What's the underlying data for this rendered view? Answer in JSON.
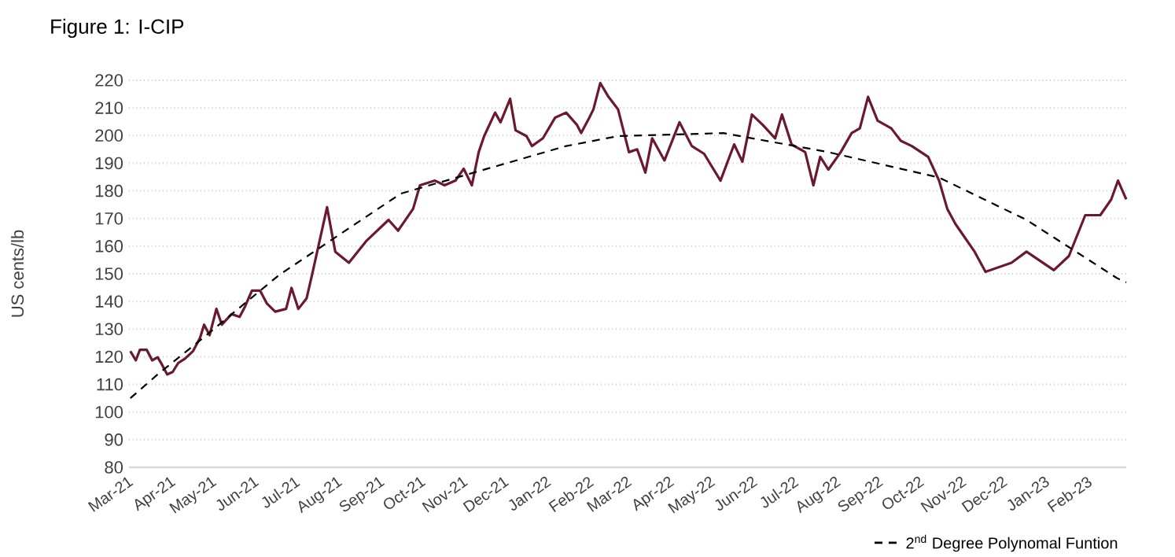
{
  "chart_data": {
    "type": "line",
    "title": "Figure 1: I-CIP",
    "ylabel": "US cents/lb",
    "xlim": [
      "2021-03-01",
      "2023-03-01"
    ],
    "ylim": [
      80,
      220
    ],
    "xticks": [
      {
        "value": "2021-03-01",
        "label": "Mar-21"
      },
      {
        "value": "2021-04-01",
        "label": "Apr-21"
      },
      {
        "value": "2021-05-01",
        "label": "May-21"
      },
      {
        "value": "2021-06-01",
        "label": "Jun-21"
      },
      {
        "value": "2021-07-01",
        "label": "Jul-21"
      },
      {
        "value": "2021-08-01",
        "label": "Aug-21"
      },
      {
        "value": "2021-09-01",
        "label": "Sep-21"
      },
      {
        "value": "2021-10-01",
        "label": "Oct-21"
      },
      {
        "value": "2021-11-01",
        "label": "Nov-21"
      },
      {
        "value": "2021-12-01",
        "label": "Dec-21"
      },
      {
        "value": "2022-01-01",
        "label": "Jan-22"
      },
      {
        "value": "2022-02-01",
        "label": "Feb-22"
      },
      {
        "value": "2022-03-01",
        "label": "Mar-22"
      },
      {
        "value": "2022-04-01",
        "label": "Apr-22"
      },
      {
        "value": "2022-05-01",
        "label": "May-22"
      },
      {
        "value": "2022-06-01",
        "label": "Jun-22"
      },
      {
        "value": "2022-07-01",
        "label": "Jul-22"
      },
      {
        "value": "2022-08-01",
        "label": "Aug-22"
      },
      {
        "value": "2022-09-01",
        "label": "Sep-22"
      },
      {
        "value": "2022-10-01",
        "label": "Oct-22"
      },
      {
        "value": "2022-11-01",
        "label": "Nov-22"
      },
      {
        "value": "2022-12-01",
        "label": "Dec-22"
      },
      {
        "value": "2023-01-01",
        "label": "Jan-23"
      },
      {
        "value": "2023-02-01",
        "label": "Feb-23"
      }
    ],
    "yticks": [
      80,
      90,
      100,
      110,
      120,
      130,
      140,
      150,
      160,
      170,
      180,
      190,
      200,
      210,
      220
    ],
    "grid": "y",
    "legend": "bottom right",
    "series": [
      {
        "color": "#6b1a2e",
        "x": [
          "2021-03-02",
          "2021-03-06",
          "2021-03-09",
          "2021-03-14",
          "2021-03-18",
          "2021-03-22",
          "2021-03-25",
          "2021-03-29",
          "2021-04-02",
          "2021-04-06",
          "2021-04-11",
          "2021-04-17",
          "2021-04-22",
          "2021-04-25",
          "2021-04-29",
          "2021-05-04",
          "2021-05-08",
          "2021-05-15",
          "2021-05-21",
          "2021-05-25",
          "2021-05-30",
          "2021-06-05",
          "2021-06-10",
          "2021-06-16",
          "2021-06-24",
          "2021-06-28",
          "2021-07-03",
          "2021-07-09",
          "2021-07-13",
          "2021-07-24",
          "2021-07-30",
          "2021-08-09",
          "2021-08-22",
          "2021-09-07",
          "2021-09-14",
          "2021-09-25",
          "2021-09-30",
          "2021-10-11",
          "2021-10-18",
          "2021-10-26",
          "2021-11-01",
          "2021-11-07",
          "2021-11-12",
          "2021-11-16",
          "2021-11-24",
          "2021-11-28",
          "2021-12-05",
          "2021-12-09",
          "2021-12-17",
          "2021-12-21",
          "2021-12-29",
          "2022-01-07",
          "2022-01-15",
          "2022-01-23",
          "2022-01-26",
          "2022-02-01",
          "2022-02-04",
          "2022-02-09",
          "2022-02-15",
          "2022-02-22",
          "2022-03-02",
          "2022-03-08",
          "2022-03-14",
          "2022-03-19",
          "2022-03-28",
          "2022-04-08",
          "2022-04-17",
          "2022-04-26",
          "2022-05-08",
          "2022-05-18",
          "2022-05-24",
          "2022-05-31",
          "2022-06-08",
          "2022-06-17",
          "2022-06-22",
          "2022-06-29",
          "2022-07-09",
          "2022-07-15",
          "2022-07-20",
          "2022-07-26",
          "2022-08-04",
          "2022-08-12",
          "2022-08-18",
          "2022-08-24",
          "2022-08-31",
          "2022-09-10",
          "2022-09-17",
          "2022-09-25",
          "2022-10-07",
          "2022-10-15",
          "2022-10-21",
          "2022-10-27",
          "2022-11-10",
          "2022-11-18",
          "2022-12-07",
          "2022-12-18",
          "2023-01-07",
          "2023-01-18",
          "2023-01-30",
          "2023-02-10",
          "2023-02-18",
          "2023-02-23",
          "2023-03-01"
        ],
        "values": [
          122,
          118.7,
          122.5,
          122.5,
          118.7,
          119.8,
          117.3,
          113.6,
          114.5,
          117.7,
          119.3,
          122.1,
          126.8,
          131.6,
          127.8,
          137.3,
          131.6,
          135.4,
          134.4,
          138.2,
          143.9,
          143.9,
          139.2,
          136.3,
          137.3,
          144.9,
          137.3,
          141.1,
          149.6,
          174.1,
          158,
          154,
          162,
          169.5,
          165.6,
          173.5,
          182,
          183.7,
          182,
          183.7,
          188,
          182,
          194,
          199.8,
          208.3,
          204.8,
          213.3,
          201.9,
          199.8,
          196.2,
          199,
          206.5,
          208.3,
          203.8,
          200.9,
          206.5,
          209.5,
          219,
          214,
          209.5,
          194,
          195,
          186.6,
          199,
          191,
          204.8,
          196.2,
          193.4,
          183.7,
          196.8,
          190.5,
          207.6,
          203.8,
          199,
          207.6,
          196.8,
          194,
          182,
          192.3,
          187.7,
          194,
          200.9,
          202.6,
          214,
          205.4,
          202.6,
          198.1,
          196.2,
          192.3,
          183.7,
          173.5,
          168,
          158,
          150.7,
          154,
          158,
          151.3,
          156.4,
          171.2,
          171.2,
          176.9,
          183.7,
          176.9
        ]
      },
      {
        "name": "2$^{nd}$ Degree Polynomal Funtion",
        "color": "#000000",
        "line_style": "dashed",
        "x": [
          "2021-03-02",
          "2021-03-22",
          "2021-04-22",
          "2021-06-19",
          "2021-09-16",
          "2022-01-15",
          "2022-02-22",
          "2022-05-10",
          "2022-07-26",
          "2022-10-15",
          "2022-12-18",
          "2023-02-22",
          "2023-03-01"
        ],
        "values": [
          105,
          113.6,
          125.9,
          149.6,
          179,
          196.2,
          199.8,
          200.9,
          194,
          184.8,
          169.5,
          148.5,
          146.9
        ]
      }
    ]
  }
}
